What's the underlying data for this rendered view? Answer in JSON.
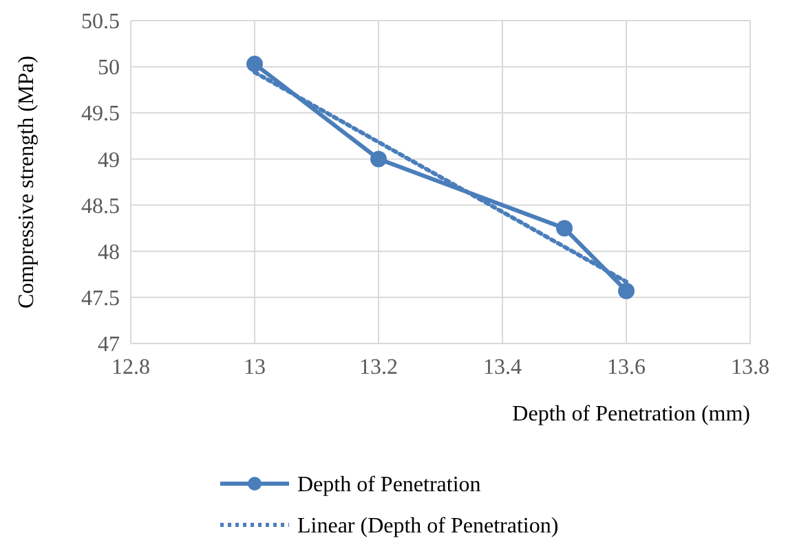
{
  "chart_data": {
    "type": "line",
    "xlabel": "Depth of Penetration (mm)",
    "ylabel": "Compressive strength (MPa)",
    "xlim": [
      12.8,
      13.8
    ],
    "xticks": [
      12.8,
      13,
      13.2,
      13.4,
      13.6,
      13.8
    ],
    "ylim": [
      47,
      50.5
    ],
    "yticks": [
      47,
      47.5,
      48,
      48.5,
      49,
      49.5,
      50,
      50.5
    ],
    "grid": true,
    "legend": "bottom",
    "series": [
      {
        "name": "Depth of Penetration",
        "color": "#4a7ebb",
        "x": [
          13,
          13.2,
          13.5,
          13.6
        ],
        "values": [
          50.03,
          49.0,
          48.25,
          47.57
        ],
        "marker": "circle",
        "line_style": "solid"
      },
      {
        "name": "Linear (Depth of Penetration)",
        "color": "#4a7ebb",
        "x": [
          13,
          13.6
        ],
        "values": [
          49.94,
          47.67
        ],
        "marker": "none",
        "line_style": "dotted"
      }
    ]
  }
}
